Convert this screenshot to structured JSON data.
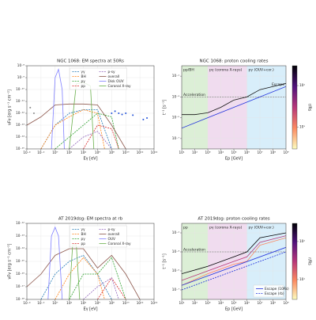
{
  "chart_data": [
    {
      "type": "line",
      "title": "NGC 1068: EM spectra at 50Rs",
      "xlabel": "Eγ [eV]",
      "ylabel": "νFν [erg s⁻¹ cm⁻²]",
      "log_x": true,
      "log_y": true,
      "grid": true,
      "legend": "upper center",
      "xlim": [
        0.0001,
        100000000000000.0
      ],
      "ylim": [
        1e-15,
        1e-08
      ],
      "xticks": [
        {
          "value": 0.0001,
          "label": "10⁻⁴"
        },
        {
          "value": 0.01,
          "label": "10⁻²"
        },
        {
          "value": 1,
          "label": "10⁰"
        },
        {
          "value": 100.0,
          "label": "10²"
        },
        {
          "value": 10000.0,
          "label": "10⁴"
        },
        {
          "value": 1000000.0,
          "label": "10⁶"
        },
        {
          "value": 100000000.0,
          "label": "10⁸"
        },
        {
          "value": 10000000000.0,
          "label": "10¹⁰"
        },
        {
          "value": 1000000000000.0,
          "label": "10¹²"
        },
        {
          "value": 100000000000000.0,
          "label": "10¹⁴"
        }
      ],
      "yticks": [
        {
          "value": 1e-15,
          "label": "10⁻¹⁵"
        },
        {
          "value": 1e-14,
          "label": "10⁻¹⁴"
        },
        {
          "value": 1e-13,
          "label": "10⁻¹³"
        },
        {
          "value": 1e-12,
          "label": "10⁻¹²"
        },
        {
          "value": 1e-11,
          "label": "10⁻¹¹"
        },
        {
          "value": 1e-10,
          "label": "10⁻¹⁰"
        },
        {
          "value": 1e-09,
          "label": "10⁻⁹"
        },
        {
          "value": 1e-08,
          "label": "10⁻⁸"
        }
      ],
      "series": [
        {
          "name": "γγ",
          "color": "#1f77b4",
          "dash": true,
          "x": [
            0.01,
            1,
            100.0,
            10000.0,
            1000000.0,
            100000000.0
          ],
          "values": [
            1e-15,
            1e-13,
            1e-12,
            2e-12,
            2e-12,
            1e-15
          ]
        },
        {
          "name": "BH",
          "color": "#ff7f0e",
          "dash": true,
          "x": [
            0.01,
            1,
            100.0,
            10000.0,
            1000000.0,
            10000000.0
          ],
          "values": [
            1e-15,
            1e-13,
            5e-13,
            2e-12,
            1e-12,
            1e-15
          ]
        },
        {
          "name": "pγ",
          "color": "#2ca02c",
          "dash": true,
          "x": [
            1,
            100.0,
            10000.0,
            1000000.0,
            100000000.0,
            1000000000.0
          ],
          "values": [
            1e-15,
            1e-14,
            1e-13,
            1e-12,
            5e-13,
            1e-15
          ]
        },
        {
          "name": "pp",
          "color": "#d62728",
          "dash": true,
          "x": [
            10000.0,
            1000000.0,
            100000000.0,
            1000000000.0
          ],
          "values": [
            1e-15,
            1e-13,
            5e-14,
            1e-15
          ]
        },
        {
          "name": "p-sy",
          "color": "#9467bd",
          "dash": true,
          "x": [
            100.0,
            10000.0,
            1000000.0,
            100000000.0
          ],
          "values": [
            1e-15,
            1e-14,
            3e-14,
            1e-15
          ]
        },
        {
          "name": "overall",
          "color": "#8c564b",
          "x": [
            0.0001,
            0.01,
            1,
            100.0,
            10000.0,
            1000000.0,
            100000000.0,
            10000000000.0
          ],
          "values": [
            1e-13,
            5e-13,
            5e-12,
            6e-12,
            6e-12,
            5e-12,
            1e-13,
            1e-15
          ]
        },
        {
          "name": "Disk OUV",
          "color": "#7f7fff",
          "x": [
            0.3,
            1,
            3,
            10,
            20
          ],
          "values": [
            1e-15,
            1e-09,
            5e-09,
            1e-10,
            1e-15
          ]
        },
        {
          "name": "Coronal X-ray",
          "color": "#6ab04c",
          "x": [
            100.0,
            1000.0,
            10000.0,
            100000.0,
            300000.0
          ],
          "values": [
            1e-15,
            3e-10,
            4e-10,
            2e-10,
            1e-15
          ]
        }
      ],
      "points": [
        {
          "color": "#1f4fd8",
          "x": [
            100000000.0,
            300000000.0,
            1000000000.0,
            3000000000.0,
            10000000000.0,
            100000000000.0,
            3000000000000.0,
            10000000000000.0
          ],
          "values": [
            1e-12,
            1.5e-12,
            1e-12,
            8e-13,
            1e-12,
            7e-13,
            3e-13,
            4e-13
          ]
        },
        {
          "color": "#888",
          "x": [
            0.0003,
            0.001
          ],
          "values": [
            3e-12,
            1e-12
          ]
        }
      ]
    },
    {
      "type": "line",
      "title": "NGC 1068: proton cooling rates",
      "xlabel": "Ep [GeV]",
      "ylabel": "t⁻¹ [s⁻¹]",
      "log_x": true,
      "log_y": true,
      "grid": true,
      "xlim": [
        10,
        1000000000.0
      ],
      "ylim": [
        1e-08,
        1
      ],
      "xticks": [
        {
          "value": 10,
          "label": "10¹"
        },
        {
          "value": 100,
          "label": "10²"
        },
        {
          "value": 1000.0,
          "label": "10³"
        },
        {
          "value": 10000.0,
          "label": "10⁴"
        },
        {
          "value": 100000.0,
          "label": "10⁵"
        },
        {
          "value": 1000000.0,
          "label": "10⁶"
        },
        {
          "value": 10000000.0,
          "label": "10⁷"
        },
        {
          "value": 100000000.0,
          "label": "10⁸"
        },
        {
          "value": 1000000000.0,
          "label": "10⁹"
        }
      ],
      "yticks": [
        {
          "value": 1e-07,
          "label": "10⁻⁷"
        },
        {
          "value": 1e-05,
          "label": "10⁻⁵"
        },
        {
          "value": 0.001,
          "label": "10⁻³"
        },
        {
          "value": 0.1,
          "label": "10⁻¹"
        }
      ],
      "regions": [
        {
          "x0": 10,
          "x1": 1000.0,
          "color": "#dcefd6",
          "label": "pp/BH",
          "label_color": "#2a8a2a"
        },
        {
          "x0": 1000.0,
          "x1": 1000000.0,
          "color": "#f0dcef",
          "label": "pγ (corona X-rays)",
          "label_color": "#a03aa0"
        },
        {
          "x0": 1000000.0,
          "x1": 1000000000.0,
          "color": "#d8eefa",
          "label": "pγ (OUV+cor.)",
          "label_color": "#2a8ac8"
        }
      ],
      "series": [
        {
          "name": "Acceleration",
          "legend": false,
          "inline_label": true,
          "color": "#888",
          "dash": true,
          "x": [
            10,
            1000000000.0
          ],
          "values": [
            0.001,
            0.001
          ]
        },
        {
          "name": "Escape",
          "legend": false,
          "inline_label": true,
          "color": "#2233dd",
          "x": [
            10,
            1000000000.0
          ],
          "values": [
            1e-06,
            0.01
          ]
        },
        {
          "color": "#111",
          "x": [
            10,
            100,
            1000.0,
            10000.0,
            100000.0,
            1000000.0,
            10000000.0,
            100000000.0,
            1000000000.0
          ],
          "values": [
            2e-05,
            2e-05,
            3e-05,
            0.0001,
            0.0005,
            0.001,
            0.005,
            0.01,
            0.02
          ]
        }
      ],
      "colorbar": {
        "label": "r/Rs",
        "colors": [
          "#fcfdbf",
          "#fc8961",
          "#b73779",
          "#51127c",
          "#000004"
        ],
        "lim": [
          3,
          300
        ],
        "ticks": [
          {
            "value": 10,
            "label": "10¹"
          },
          {
            "value": 100,
            "label": "10²"
          }
        ]
      }
    },
    {
      "type": "line",
      "title": "AT 2019dsg: EM spectra at rb",
      "xlabel": "Eγ [eV]",
      "ylabel": "νFν [erg s⁻¹ cm⁻²]",
      "log_x": true,
      "log_y": true,
      "grid": true,
      "legend": "upper center",
      "xlim": [
        0.0001,
        100000000000000.0
      ],
      "ylim": [
        1e-18,
        1e-12
      ],
      "xticks": [
        {
          "value": 0.0001,
          "label": "10⁻⁴"
        },
        {
          "value": 0.01,
          "label": "10⁻²"
        },
        {
          "value": 1,
          "label": "10⁰"
        },
        {
          "value": 100.0,
          "label": "10²"
        },
        {
          "value": 10000.0,
          "label": "10⁴"
        },
        {
          "value": 1000000.0,
          "label": "10⁶"
        },
        {
          "value": 100000000.0,
          "label": "10⁸"
        },
        {
          "value": 10000000000.0,
          "label": "10¹⁰"
        },
        {
          "value": 1000000000000.0,
          "label": "10¹²"
        },
        {
          "value": 100000000000000.0,
          "label": "10¹⁴"
        }
      ],
      "yticks": [
        {
          "value": 1e-18,
          "label": "10⁻¹⁸"
        },
        {
          "value": 1e-17,
          "label": "10⁻¹⁷"
        },
        {
          "value": 1e-16,
          "label": "10⁻¹⁶"
        },
        {
          "value": 1e-15,
          "label": "10⁻¹⁵"
        },
        {
          "value": 1e-14,
          "label": "10⁻¹⁴"
        },
        {
          "value": 1e-13,
          "label": "10⁻¹³"
        },
        {
          "value": 1e-12,
          "label": "10⁻¹²"
        }
      ],
      "series": [
        {
          "name": "γγ",
          "color": "#1f77b4",
          "dash": true,
          "x": [
            0.01,
            1,
            100.0,
            10000.0,
            1000000.0,
            100000000.0
          ],
          "values": [
            1e-18,
            1e-16,
            1e-15,
            3e-15,
            1e-16,
            1e-18
          ]
        },
        {
          "name": "BH",
          "color": "#ff7f0e",
          "dash": true,
          "x": [
            1,
            100.0,
            10000.0,
            1000000.0,
            10000000.0
          ],
          "values": [
            1e-18,
            1e-16,
            2e-15,
            1e-16,
            1e-18
          ]
        },
        {
          "name": "pγ",
          "color": "#2ca02c",
          "dash": true,
          "x": [
            100.0,
            10000.0,
            1000000.0,
            100000000.0,
            10000000000.0
          ],
          "values": [
            1e-18,
            1e-16,
            1e-16,
            2e-15,
            1e-18
          ]
        },
        {
          "name": "pp",
          "color": "#d62728",
          "dash": true,
          "x": [
            1000000.0,
            100000000.0,
            10000000000.0
          ],
          "values": [
            1e-18,
            5e-17,
            1e-18
          ]
        },
        {
          "name": "p-sy",
          "color": "#9467bd",
          "dash": true,
          "x": [
            10000.0,
            1000000.0,
            100000000.0,
            1000000000.0
          ],
          "values": [
            1e-18,
            1e-17,
            5e-17,
            1e-18
          ]
        },
        {
          "name": "overall",
          "color": "#8c564b",
          "x": [
            0.0001,
            0.01,
            1,
            100.0,
            10000.0,
            1000000.0,
            100000000.0,
            10000000000.0,
            1000000000000.0
          ],
          "values": [
            1e-17,
            1e-16,
            3e-15,
            1e-14,
            1e-14,
            3e-16,
            3e-15,
            1e-16,
            1e-18
          ]
        },
        {
          "name": "OUV",
          "color": "#7f7fff",
          "x": [
            0.1,
            0.3,
            1,
            3,
            10
          ],
          "values": [
            1e-18,
            1e-13,
            5e-13,
            1e-13,
            1e-18
          ]
        },
        {
          "name": "Coronal X-ray",
          "color": "#6ab04c",
          "x": [
            100,
            300,
            1000.0,
            3000.0
          ],
          "values": [
            1e-18,
            2e-14,
            2e-14,
            1e-18
          ]
        }
      ]
    },
    {
      "type": "line",
      "title": "AT 2019dsg: proton cooling rates",
      "xlabel": "Ep [GeV]",
      "ylabel": "t⁻¹ [s⁻¹]",
      "log_x": true,
      "log_y": true,
      "grid": true,
      "legend": "lower right",
      "xlim": [
        10,
        1000000000.0
      ],
      "ylim": [
        1e-08,
        1
      ],
      "xticks": [
        {
          "value": 10,
          "label": "10¹"
        },
        {
          "value": 100,
          "label": "10²"
        },
        {
          "value": 1000.0,
          "label": "10³"
        },
        {
          "value": 10000.0,
          "label": "10⁴"
        },
        {
          "value": 100000.0,
          "label": "10⁵"
        },
        {
          "value": 1000000.0,
          "label": "10⁶"
        },
        {
          "value": 10000000.0,
          "label": "10⁷"
        },
        {
          "value": 100000000.0,
          "label": "10⁸"
        },
        {
          "value": 1000000000.0,
          "label": "10⁹"
        }
      ],
      "yticks": [
        {
          "value": 1e-07,
          "label": "10⁻⁷"
        },
        {
          "value": 1e-05,
          "label": "10⁻⁵"
        },
        {
          "value": 0.001,
          "label": "10⁻³"
        },
        {
          "value": 0.1,
          "label": "10⁻¹"
        }
      ],
      "regions": [
        {
          "x0": 10,
          "x1": 1000.0,
          "color": "#dcefd6",
          "label": "pp",
          "label_color": "#2a8a2a"
        },
        {
          "x0": 1000.0,
          "x1": 1000000.0,
          "color": "#f0dcef",
          "label": "pγ (corona X-rays)",
          "label_color": "#a03aa0"
        },
        {
          "x0": 1000000.0,
          "x1": 1000000000.0,
          "color": "#d8eefa",
          "label": "pγ (OUV+cor.)",
          "label_color": "#2a8ac8"
        }
      ],
      "series": [
        {
          "name": "Acceleration",
          "legend": false,
          "inline_label": true,
          "color": "#888",
          "dash": true,
          "x": [
            10,
            1000000000.0
          ],
          "values": [
            0.001,
            0.001
          ]
        },
        {
          "color": "#000004",
          "x": [
            10,
            1000.0,
            100000.0,
            1000000.0,
            10000000.0,
            1000000000.0
          ],
          "values": [
            5e-06,
            3e-05,
            0.0003,
            0.001,
            0.03,
            0.1
          ]
        },
        {
          "color": "#b73779",
          "x": [
            10,
            1000.0,
            100000.0,
            1000000.0,
            10000000.0,
            1000000000.0
          ],
          "values": [
            1e-06,
            1e-05,
            0.0001,
            0.0003,
            0.01,
            0.05
          ]
        },
        {
          "color": "#fc8961",
          "x": [
            10,
            1000.0,
            100000.0,
            1000000.0,
            10000000.0,
            1000000000.0
          ],
          "values": [
            3e-07,
            5e-06,
            5e-05,
            0.0001,
            0.005,
            0.03
          ]
        },
        {
          "name": "Escape (10Rs)",
          "color": "#2233dd",
          "x": [
            10,
            1000000000.0
          ],
          "values": [
            3e-07,
            0.003
          ]
        },
        {
          "name": "Escape (rb)",
          "color": "#2233dd",
          "dash": true,
          "x": [
            10,
            1000000000.0
          ],
          "values": [
            1e-07,
            0.001
          ]
        }
      ],
      "colorbar": {
        "label": "r/Rs",
        "colors": [
          "#fcfdbf",
          "#fc8961",
          "#b73779",
          "#51127c",
          "#000004"
        ],
        "lim": [
          3,
          300
        ],
        "ticks": [
          {
            "value": 10,
            "label": "10¹"
          },
          {
            "value": 100,
            "label": "10²"
          }
        ]
      }
    }
  ]
}
